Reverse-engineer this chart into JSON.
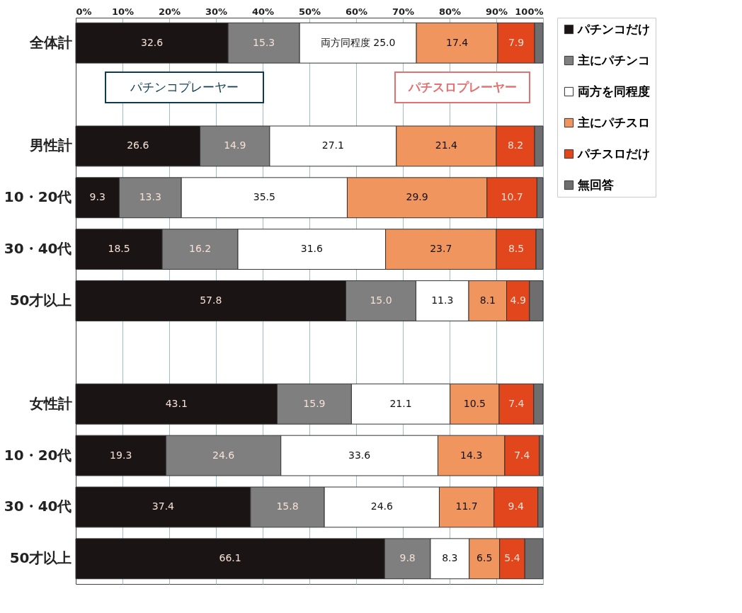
{
  "chart_data": {
    "type": "bar",
    "orientation": "horizontal",
    "stacked": true,
    "categories": [
      "全体計",
      null,
      "男性計",
      "10・20代",
      "30・40代",
      "50才以上",
      null,
      "女性計",
      "10・20代",
      "30・40代",
      "50才以上"
    ],
    "series": [
      {
        "name": "パチンコだけ",
        "color": "#1a1414",
        "values": [
          32.6,
          null,
          26.6,
          9.3,
          18.5,
          57.8,
          null,
          43.1,
          19.3,
          37.4,
          66.1
        ],
        "value_labels": [
          "32.6",
          null,
          "26.6",
          "9.3",
          "18.5",
          "57.8",
          null,
          "43.1",
          "19.3",
          "37.4",
          "66.1"
        ]
      },
      {
        "name": "主にパチンコ",
        "color": "#7f7f7f",
        "values": [
          15.3,
          null,
          14.9,
          13.3,
          16.2,
          15.0,
          null,
          15.9,
          24.6,
          15.8,
          9.8
        ],
        "value_labels": [
          "15.3",
          null,
          "14.9",
          "13.3",
          "16.2",
          "15.0",
          null,
          "15.9",
          "24.6",
          "15.8",
          "9.8"
        ]
      },
      {
        "name": "両方を同程度",
        "color": "#ffffff",
        "values": [
          25.0,
          null,
          27.1,
          35.5,
          31.6,
          11.3,
          null,
          21.1,
          33.6,
          24.6,
          8.3
        ],
        "value_labels": [
          "両方同程度 25.0",
          null,
          "27.1",
          "35.5",
          "31.6",
          "11.3",
          null,
          "21.1",
          "33.6",
          "24.6",
          "8.3"
        ]
      },
      {
        "name": "主にパチスロ",
        "color": "#f0955e",
        "values": [
          17.4,
          null,
          21.4,
          29.9,
          23.7,
          8.1,
          null,
          10.5,
          14.3,
          11.7,
          6.5
        ],
        "value_labels": [
          "17.4",
          null,
          "21.4",
          "29.9",
          "23.7",
          "8.1",
          null,
          "10.5",
          "14.3",
          "11.7",
          "6.5"
        ]
      },
      {
        "name": "パチスロだけ",
        "color": "#e2461c",
        "values": [
          7.9,
          null,
          8.2,
          10.7,
          8.5,
          4.9,
          null,
          7.4,
          7.4,
          9.4,
          5.4
        ],
        "value_labels": [
          "7.9",
          null,
          "8.2",
          "10.7",
          "8.5",
          "4.9",
          null,
          "7.4",
          "7.4",
          "9.4",
          "5.4"
        ]
      },
      {
        "name": "無回答",
        "color": "#6e6e6e",
        "values": [
          1.8,
          null,
          1.8,
          1.3,
          1.5,
          2.9,
          null,
          2.0,
          0.8,
          1.1,
          3.9
        ]
      }
    ],
    "xlim": [
      0,
      100
    ],
    "xticks": [
      {
        "value": 0,
        "label": "0%"
      },
      {
        "value": 10,
        "label": "10%"
      },
      {
        "value": 20,
        "label": "20%"
      },
      {
        "value": 30,
        "label": "30%"
      },
      {
        "value": 40,
        "label": "40%"
      },
      {
        "value": 50,
        "label": "50%"
      },
      {
        "value": 60,
        "label": "60%"
      },
      {
        "value": 70,
        "label": "70%"
      },
      {
        "value": 80,
        "label": "80%"
      },
      {
        "value": 90,
        "label": "90%"
      },
      {
        "value": 100,
        "label": "100%"
      }
    ],
    "grid": "x",
    "legend": "top right",
    "annotations": [
      "パチンコプレーヤー",
      "パチスロプレーヤー"
    ]
  }
}
